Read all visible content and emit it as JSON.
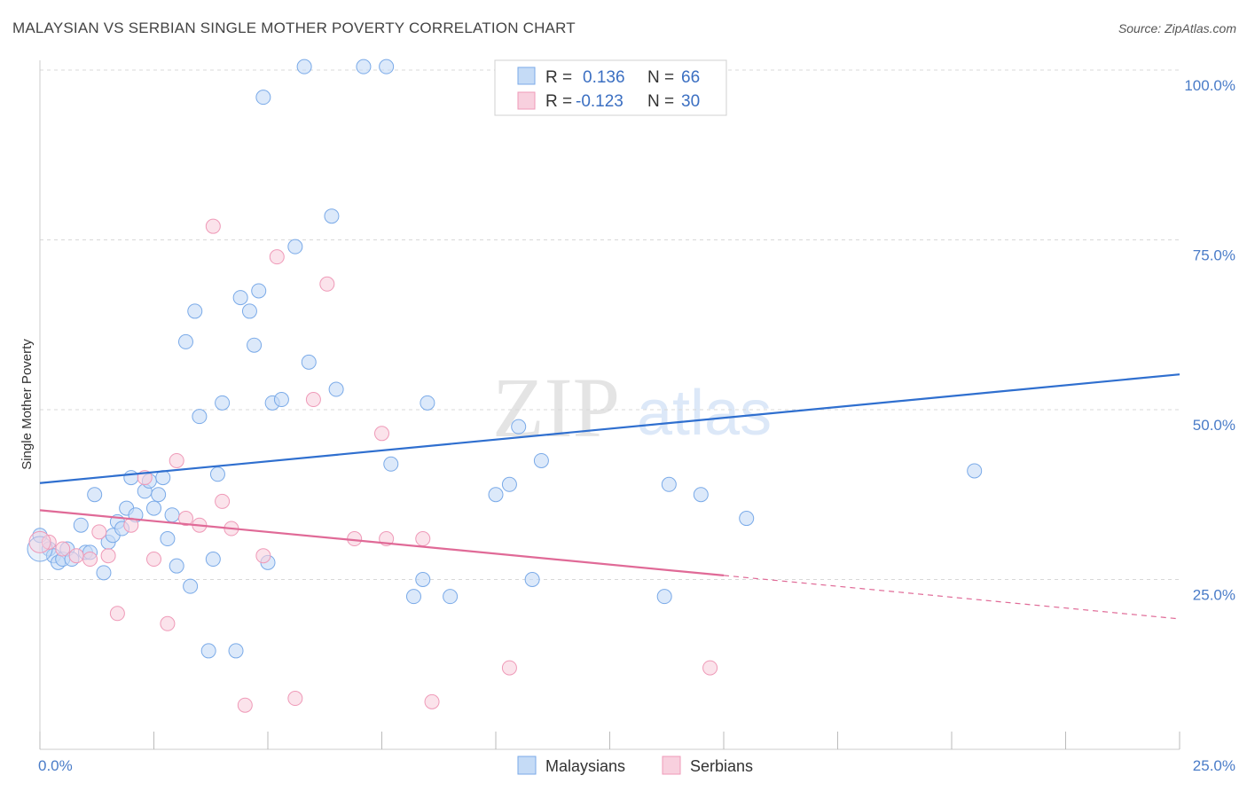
{
  "title": "MALAYSIAN VS SERBIAN SINGLE MOTHER POVERTY CORRELATION CHART",
  "source": "Source: ZipAtlas.com",
  "watermark": {
    "zip": "ZIP",
    "atlas": "atlas"
  },
  "colors": {
    "blue": "#7aaae8",
    "blue_fill": "#c5dbf6",
    "blue_line": "#2f6fcf",
    "pink": "#ef9ab8",
    "pink_fill": "#f8d0de",
    "pink_line": "#e06a97",
    "grid": "#d8d8d8",
    "axis_text": "#4a7cc8"
  },
  "legend_top": {
    "rows": [
      {
        "r_label": "R =",
        "r_value": "0.136",
        "n_label": "N =",
        "n_value": "66"
      },
      {
        "r_label": "R =",
        "r_value": "-0.123",
        "n_label": "N =",
        "n_value": "30"
      }
    ]
  },
  "legend_bottom": [
    "Malaysians",
    "Serbians"
  ],
  "chart_data": {
    "type": "scatter",
    "title": "MALAYSIAN VS SERBIAN SINGLE MOTHER POVERTY CORRELATION CHART",
    "xlabel": "",
    "ylabel": "Single Mother Poverty",
    "xlim": [
      0,
      25
    ],
    "ylim": [
      0,
      100
    ],
    "x_tick_labels": [
      "0.0%",
      "25.0%"
    ],
    "y_tick_labels": [
      "25.0%",
      "50.0%",
      "75.0%",
      "100.0%"
    ],
    "y_ticks": [
      25,
      50,
      75,
      100
    ],
    "grid": true,
    "legend_placement": "top-center",
    "series": [
      {
        "name": "Malaysians",
        "r": 0.136,
        "n": 66,
        "trend": {
          "x": [
            0,
            25
          ],
          "y": [
            39.2,
            55.2
          ],
          "dashed_from": null
        },
        "points": [
          [
            0.0,
            31.5
          ],
          [
            0.2,
            29.5
          ],
          [
            0.3,
            28.5
          ],
          [
            0.4,
            27.5
          ],
          [
            0.5,
            28.0
          ],
          [
            0.6,
            29.5
          ],
          [
            0.7,
            28.0
          ],
          [
            0.9,
            33.0
          ],
          [
            1.0,
            29.0
          ],
          [
            1.1,
            29.0
          ],
          [
            1.2,
            37.5
          ],
          [
            1.4,
            26.0
          ],
          [
            1.5,
            30.5
          ],
          [
            1.6,
            31.5
          ],
          [
            1.7,
            33.5
          ],
          [
            1.8,
            32.5
          ],
          [
            1.9,
            35.5
          ],
          [
            2.0,
            40.0
          ],
          [
            2.1,
            34.5
          ],
          [
            2.3,
            38.0
          ],
          [
            2.4,
            39.5
          ],
          [
            2.5,
            35.5
          ],
          [
            2.6,
            37.5
          ],
          [
            2.7,
            40.0
          ],
          [
            2.8,
            31.0
          ],
          [
            2.9,
            34.5
          ],
          [
            3.0,
            27.0
          ],
          [
            3.2,
            60.0
          ],
          [
            3.3,
            24.0
          ],
          [
            3.4,
            64.5
          ],
          [
            3.5,
            49.0
          ],
          [
            3.7,
            14.5
          ],
          [
            3.8,
            28.0
          ],
          [
            3.9,
            40.5
          ],
          [
            4.0,
            51.0
          ],
          [
            4.3,
            14.5
          ],
          [
            4.4,
            66.5
          ],
          [
            4.6,
            64.5
          ],
          [
            4.7,
            59.5
          ],
          [
            4.8,
            67.5
          ],
          [
            4.9,
            96.0
          ],
          [
            5.0,
            27.5
          ],
          [
            5.1,
            51.0
          ],
          [
            5.3,
            51.5
          ],
          [
            5.6,
            74.0
          ],
          [
            5.8,
            100.5
          ],
          [
            5.9,
            57.0
          ],
          [
            6.4,
            78.5
          ],
          [
            6.5,
            53.0
          ],
          [
            7.1,
            100.5
          ],
          [
            7.6,
            100.5
          ],
          [
            7.7,
            42.0
          ],
          [
            8.2,
            22.5
          ],
          [
            8.4,
            25.0
          ],
          [
            8.5,
            51.0
          ],
          [
            9.0,
            22.5
          ],
          [
            10.0,
            37.5
          ],
          [
            10.3,
            39.0
          ],
          [
            10.5,
            47.5
          ],
          [
            10.8,
            25.0
          ],
          [
            11.0,
            42.5
          ],
          [
            13.7,
            22.5
          ],
          [
            13.8,
            39.0
          ],
          [
            14.5,
            37.5
          ],
          [
            15.5,
            34.0
          ],
          [
            20.5,
            41.0
          ]
        ]
      },
      {
        "name": "Serbians",
        "r": -0.123,
        "n": 30,
        "trend": {
          "x": [
            0,
            25
          ],
          "y": [
            35.2,
            19.2
          ],
          "dashed_from": 15
        },
        "points": [
          [
            0.2,
            30.5
          ],
          [
            0.5,
            29.5
          ],
          [
            0.8,
            28.5
          ],
          [
            1.1,
            28.0
          ],
          [
            1.3,
            32.0
          ],
          [
            1.5,
            28.5
          ],
          [
            1.7,
            20.0
          ],
          [
            2.0,
            33.0
          ],
          [
            2.3,
            40.0
          ],
          [
            2.5,
            28.0
          ],
          [
            2.8,
            18.5
          ],
          [
            3.0,
            42.5
          ],
          [
            3.2,
            34.0
          ],
          [
            3.5,
            33.0
          ],
          [
            3.8,
            77.0
          ],
          [
            4.0,
            36.5
          ],
          [
            4.2,
            32.5
          ],
          [
            4.5,
            6.5
          ],
          [
            4.9,
            28.5
          ],
          [
            5.2,
            72.5
          ],
          [
            5.6,
            7.5
          ],
          [
            6.0,
            51.5
          ],
          [
            6.3,
            68.5
          ],
          [
            6.9,
            31.0
          ],
          [
            7.5,
            46.5
          ],
          [
            7.6,
            31.0
          ],
          [
            8.4,
            31.0
          ],
          [
            8.6,
            7.0
          ],
          [
            10.3,
            12.0
          ],
          [
            14.7,
            12.0
          ]
        ]
      }
    ]
  }
}
